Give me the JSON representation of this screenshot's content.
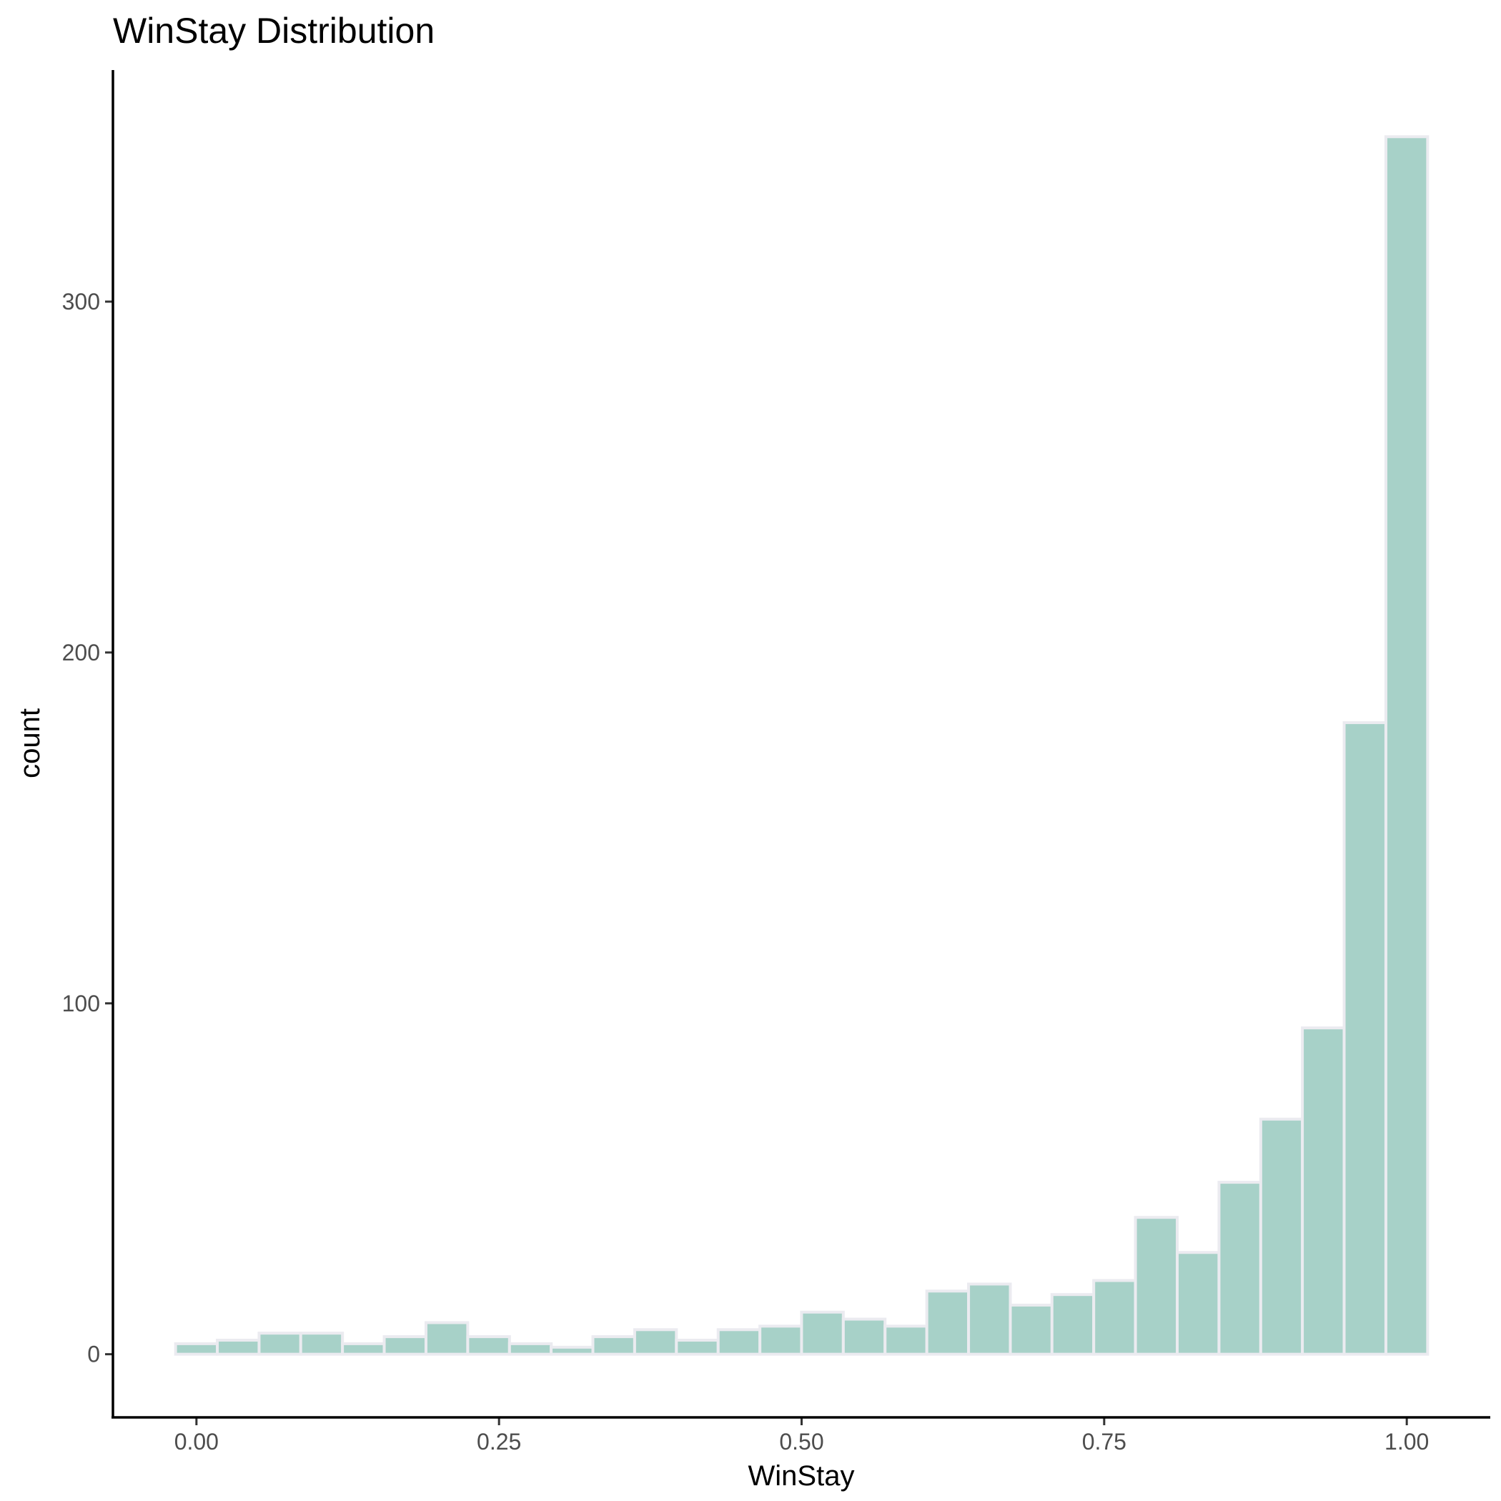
{
  "chart_data": {
    "type": "bar",
    "title": "WinStay Distribution",
    "xlabel": "WinStay",
    "ylabel": "count",
    "xlim": [
      -0.069,
      1.069
    ],
    "ylim": [
      -18,
      366
    ],
    "xticks": [
      0.0,
      0.25,
      0.5,
      0.75,
      1.0
    ],
    "xtick_labels": [
      "0.00",
      "0.25",
      "0.50",
      "0.75",
      "1.00"
    ],
    "yticks": [
      0,
      100,
      200,
      300
    ],
    "ytick_labels": [
      "0",
      "100",
      "200",
      "300"
    ],
    "bin_width": 0.0345,
    "bin_centers": [
      0.0,
      0.0345,
      0.069,
      0.1034,
      0.1379,
      0.1724,
      0.2069,
      0.2414,
      0.2759,
      0.3103,
      0.3448,
      0.3793,
      0.4138,
      0.4483,
      0.4828,
      0.5172,
      0.5517,
      0.5862,
      0.6207,
      0.6552,
      0.6897,
      0.7241,
      0.7586,
      0.7931,
      0.8276,
      0.8621,
      0.8966,
      0.931,
      0.9655,
      1.0
    ],
    "values": [
      3,
      4,
      6,
      6,
      3,
      5,
      9,
      5,
      3,
      2,
      5,
      7,
      4,
      7,
      8,
      12,
      10,
      8,
      18,
      20,
      14,
      17,
      21,
      39,
      29,
      49,
      67,
      93,
      180,
      347
    ],
    "bar_fill": "#a7d1c8",
    "bar_outline": "#ebebf0",
    "grid": false,
    "legend": "none"
  }
}
